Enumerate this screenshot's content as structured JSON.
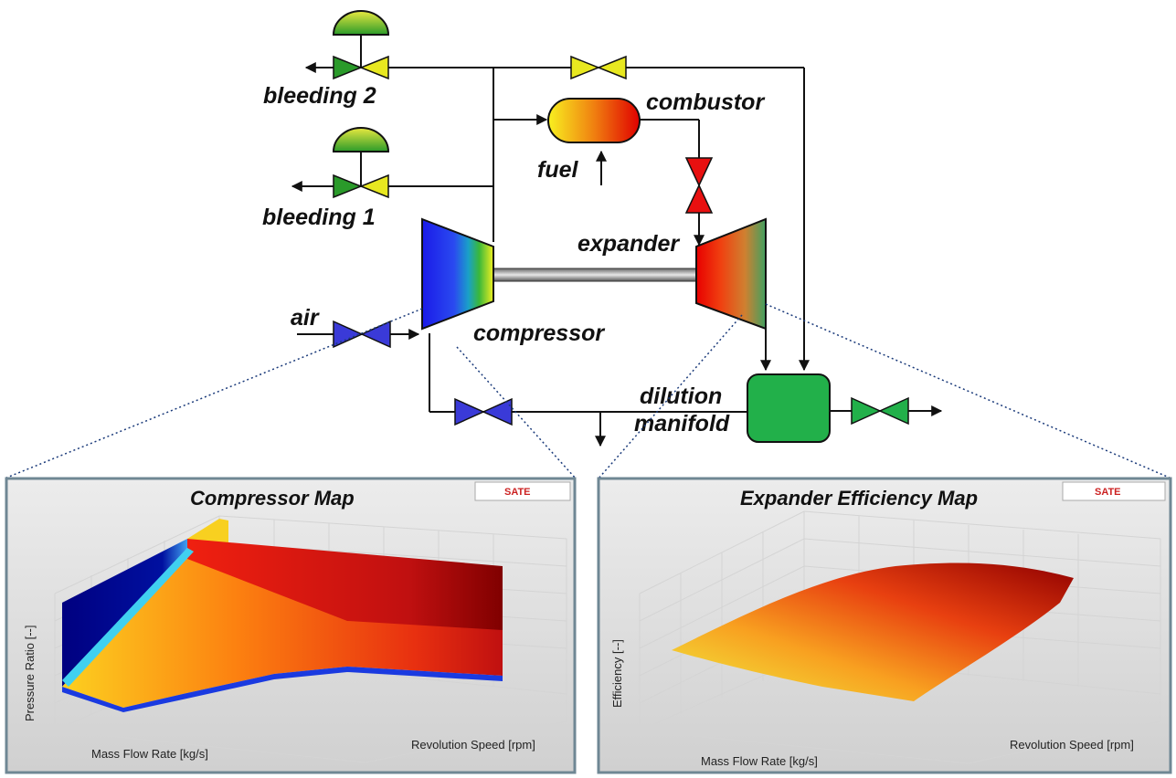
{
  "labels": {
    "bleeding2": "bleeding 2",
    "bleeding1": "bleeding 1",
    "combustor": "combustor",
    "fuel": "fuel",
    "expander": "expander",
    "air": "air",
    "compressor": "compressor",
    "dilution": "dilution",
    "manifold": "manifold"
  },
  "maps": {
    "compressor": {
      "title": "Compressor Map",
      "xlabel": "Mass Flow Rate [kg/s]",
      "ylabel": "Revolution Speed [rpm]",
      "zlabel": "Pressure Ratio [--]",
      "logo": "SATE"
    },
    "expander": {
      "title": "Expander Efficiency Map",
      "xlabel": "Mass Flow Rate [kg/s]",
      "ylabel": "Revolution Speed [rpm]",
      "zlabel": "Efficiency [--]",
      "logo": "SATE"
    }
  },
  "colors": {
    "valve_blue": "#3a3ad8",
    "valve_green": "#2a9a3a",
    "valve_yellow": "#e8e820",
    "valve_red": "#e81010",
    "manifold_green": "#22b04a",
    "panel_frame": "#6f8794",
    "panel_bg": "#dcdcdc"
  }
}
